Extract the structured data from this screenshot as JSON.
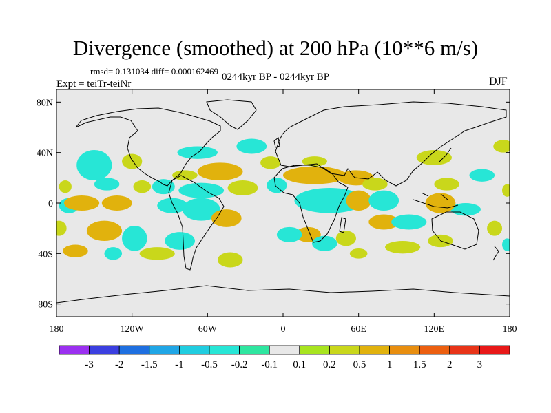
{
  "chart_data": {
    "type": "heatmap",
    "title": "Divergence (smoothed) at 200 hPa (10**6 m/s)",
    "stats_line": "rmsd= 0.131034 diff= 0.000162469",
    "experiment": "Expt = teiTr-teiNr",
    "period": "0244kyr BP - 0244kyr BP",
    "season": "DJF",
    "xlim": [
      -180,
      180
    ],
    "ylim": [
      -90,
      90
    ],
    "x_ticks": [
      {
        "value": -180,
        "label": "180"
      },
      {
        "value": -120,
        "label": "120W"
      },
      {
        "value": -60,
        "label": "60W"
      },
      {
        "value": 0,
        "label": "0"
      },
      {
        "value": 60,
        "label": "60E"
      },
      {
        "value": 120,
        "label": "120E"
      },
      {
        "value": 180,
        "label": "180"
      }
    ],
    "y_ticks": [
      {
        "value": 80,
        "label": "80N"
      },
      {
        "value": 40,
        "label": "40N"
      },
      {
        "value": 0,
        "label": "0"
      },
      {
        "value": -40,
        "label": "40S"
      },
      {
        "value": -80,
        "label": "80S"
      }
    ],
    "colorbar": {
      "levels": [
        "-3",
        "-2",
        "-1.5",
        "-1",
        "-0.5",
        "-0.2",
        "-0.1",
        "0.1",
        "0.2",
        "0.5",
        "1",
        "1.5",
        "2",
        "3"
      ],
      "colors": [
        "#9b30f0",
        "#3b3fe0",
        "#1e6fe0",
        "#20a6e6",
        "#20cde0",
        "#27e6d6",
        "#2ee6a0",
        "#e8e8e8",
        "#a8e41f",
        "#c9d71b",
        "#e1b20d",
        "#e88e0f",
        "#ec5f10",
        "#e83418",
        "#e81818"
      ]
    },
    "background_color": "#e8e8e8",
    "regions": [
      {
        "value": -0.3,
        "lon": -150,
        "lat": 30,
        "rx": 14,
        "ry": 12
      },
      {
        "value": -0.3,
        "lon": -140,
        "lat": 15,
        "rx": 10,
        "ry": 5
      },
      {
        "value": 0.3,
        "lon": -120,
        "lat": 33,
        "rx": 8,
        "ry": 6
      },
      {
        "value": -0.3,
        "lon": -170,
        "lat": -2,
        "rx": 8,
        "ry": 6
      },
      {
        "value": 0.3,
        "lon": -173,
        "lat": 13,
        "rx": 5,
        "ry": 5
      },
      {
        "value": 0.5,
        "lon": -160,
        "lat": 0,
        "rx": 14,
        "ry": 6
      },
      {
        "value": 0.5,
        "lon": -132,
        "lat": 0,
        "rx": 12,
        "ry": 6
      },
      {
        "value": 0.3,
        "lon": -112,
        "lat": 13,
        "rx": 7,
        "ry": 5
      },
      {
        "value": -0.3,
        "lon": -95,
        "lat": 13,
        "rx": 9,
        "ry": 6
      },
      {
        "value": -0.3,
        "lon": -65,
        "lat": 10,
        "rx": 18,
        "ry": 6
      },
      {
        "value": 0.3,
        "lon": -78,
        "lat": 22,
        "rx": 10,
        "ry": 4
      },
      {
        "value": 0.5,
        "lon": -50,
        "lat": 25,
        "rx": 18,
        "ry": 7
      },
      {
        "value": 0.3,
        "lon": -32,
        "lat": 12,
        "rx": 12,
        "ry": 6
      },
      {
        "value": -0.3,
        "lon": -68,
        "lat": 40,
        "rx": 16,
        "ry": 5
      },
      {
        "value": -0.3,
        "lon": -88,
        "lat": -2,
        "rx": 12,
        "ry": 6
      },
      {
        "value": -0.3,
        "lon": -65,
        "lat": -5,
        "rx": 15,
        "ry": 9
      },
      {
        "value": 0.5,
        "lon": -45,
        "lat": -12,
        "rx": 12,
        "ry": 7
      },
      {
        "value": 0.3,
        "lon": -178,
        "lat": -20,
        "rx": 6,
        "ry": 6
      },
      {
        "value": 0.5,
        "lon": -142,
        "lat": -22,
        "rx": 14,
        "ry": 8
      },
      {
        "value": -0.3,
        "lon": -118,
        "lat": -28,
        "rx": 10,
        "ry": 10
      },
      {
        "value": -0.3,
        "lon": -82,
        "lat": -30,
        "rx": 12,
        "ry": 7
      },
      {
        "value": 0.5,
        "lon": -165,
        "lat": -38,
        "rx": 10,
        "ry": 5
      },
      {
        "value": -0.3,
        "lon": -135,
        "lat": -40,
        "rx": 7,
        "ry": 5
      },
      {
        "value": 0.3,
        "lon": -100,
        "lat": -40,
        "rx": 14,
        "ry": 5
      },
      {
        "value": 0.3,
        "lon": -42,
        "lat": -45,
        "rx": 10,
        "ry": 6
      },
      {
        "value": -0.3,
        "lon": -25,
        "lat": 45,
        "rx": 12,
        "ry": 6
      },
      {
        "value": 0.3,
        "lon": -10,
        "lat": 32,
        "rx": 8,
        "ry": 5
      },
      {
        "value": -0.3,
        "lon": -5,
        "lat": 14,
        "rx": 8,
        "ry": 6
      },
      {
        "value": 0.5,
        "lon": 25,
        "lat": 22,
        "rx": 25,
        "ry": 7
      },
      {
        "value": 0.3,
        "lon": 25,
        "lat": 33,
        "rx": 10,
        "ry": 4
      },
      {
        "value": -0.3,
        "lon": 37,
        "lat": 2,
        "rx": 28,
        "ry": 10
      },
      {
        "value": 0.5,
        "lon": 60,
        "lat": 2,
        "rx": 10,
        "ry": 8
      },
      {
        "value": 0.5,
        "lon": 58,
        "lat": 20,
        "rx": 14,
        "ry": 6
      },
      {
        "value": 0.3,
        "lon": 73,
        "lat": 15,
        "rx": 10,
        "ry": 5
      },
      {
        "value": -0.3,
        "lon": 80,
        "lat": 2,
        "rx": 12,
        "ry": 8
      },
      {
        "value": 0.5,
        "lon": 20,
        "lat": -25,
        "rx": 10,
        "ry": 6
      },
      {
        "value": -0.3,
        "lon": 5,
        "lat": -25,
        "rx": 10,
        "ry": 6
      },
      {
        "value": -0.3,
        "lon": 33,
        "lat": -32,
        "rx": 10,
        "ry": 6
      },
      {
        "value": 0.3,
        "lon": 50,
        "lat": -28,
        "rx": 8,
        "ry": 6
      },
      {
        "value": 0.5,
        "lon": 80,
        "lat": -15,
        "rx": 12,
        "ry": 6
      },
      {
        "value": -0.3,
        "lon": 100,
        "lat": -15,
        "rx": 14,
        "ry": 6
      },
      {
        "value": 0.3,
        "lon": 95,
        "lat": -35,
        "rx": 14,
        "ry": 5
      },
      {
        "value": 0.3,
        "lon": 60,
        "lat": -40,
        "rx": 7,
        "ry": 4
      },
      {
        "value": 0.3,
        "lon": 125,
        "lat": -30,
        "rx": 10,
        "ry": 5
      },
      {
        "value": 0.3,
        "lon": 168,
        "lat": -20,
        "rx": 6,
        "ry": 6
      },
      {
        "value": -0.3,
        "lon": 145,
        "lat": -5,
        "rx": 12,
        "ry": 5
      },
      {
        "value": 0.5,
        "lon": 125,
        "lat": 0,
        "rx": 12,
        "ry": 8
      },
      {
        "value": 0.3,
        "lon": 130,
        "lat": 15,
        "rx": 10,
        "ry": 5
      },
      {
        "value": 0.3,
        "lon": 120,
        "lat": 36,
        "rx": 14,
        "ry": 6
      },
      {
        "value": 0.3,
        "lon": 175,
        "lat": 45,
        "rx": 8,
        "ry": 5
      },
      {
        "value": -0.3,
        "lon": 158,
        "lat": 22,
        "rx": 10,
        "ry": 5
      },
      {
        "value": 0.3,
        "lon": 178,
        "lat": 10,
        "rx": 4,
        "ry": 5
      },
      {
        "value": -0.3,
        "lon": 178,
        "lat": -33,
        "rx": 4,
        "ry": 5
      }
    ]
  }
}
